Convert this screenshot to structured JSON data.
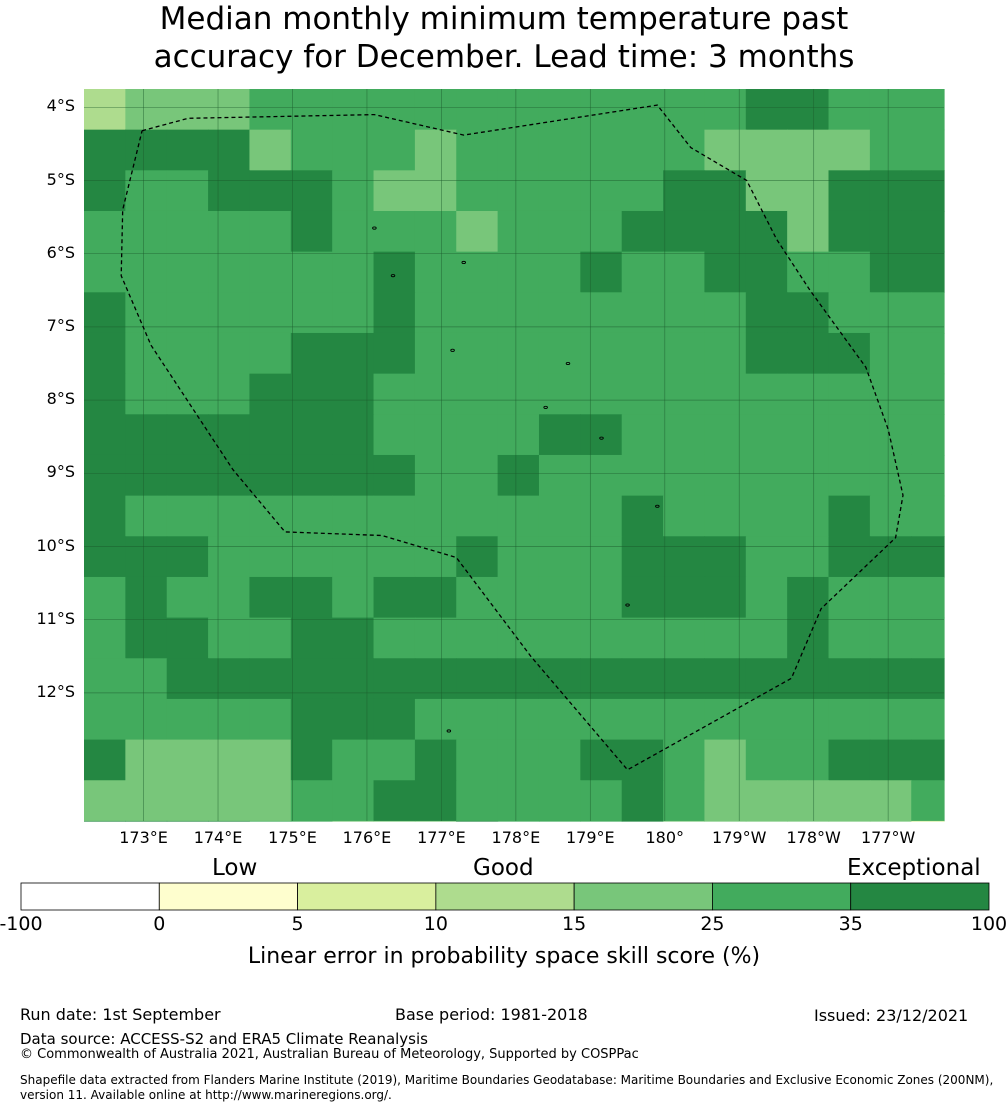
{
  "title": {
    "line1": "Median monthly minimum temperature past",
    "line2": "accuracy for December. Lead time: 3 months"
  },
  "map": {
    "lat_labels": [
      "4°S",
      "5°S",
      "6°S",
      "7°S",
      "8°S",
      "9°S",
      "10°S",
      "11°S",
      "12°S"
    ],
    "lon_labels": [
      "173°E",
      "174°E",
      "175°E",
      "176°E",
      "177°E",
      "178°E",
      "179°E",
      "180°",
      "179°W",
      "178°W",
      "177°W"
    ],
    "lat_range": [
      -13.75,
      -3.75
    ],
    "lon_range": [
      172.2,
      183.75
    ],
    "grid_lat_start": -3.75,
    "grid_lon_start": 172.2,
    "grid_cell_size": 0.5555,
    "grid_rows": [
      "aeeeffffffffffffddffffff",
      "ddddefffeffffffecccffff",
      "dffdddfeefffffddccdddff",
      "fffffdfffcfffddddcddddd",
      "fffffffdffffdffddffdddd",
      "dffffffdffffffffddfffff",
      "dffffdddffffffffdddffff",
      "dfffdddffffffffffffffff",
      "dddddddffffddffffffffff",
      "ddddddddffdffffffffffff",
      "dffffffffffffdffffdfffd",
      "dddffffffdfffdddffdddfd",
      "fdffddfddffffdddfdffffd",
      "fddffddffffffffffdffffd",
      "ffddddddddddddddddddddf",
      "fffffdddffffffffffffffd",
      "dccccdffdfffddfcffdddff",
      "cccccffddffffdfcccccfff",
      "ddddffcccdfffdccccccbeb"
    ],
    "eez_outline": [
      [
        172.98,
        -4.32
      ],
      [
        173.6,
        -4.15
      ],
      [
        176.1,
        -4.1
      ],
      [
        177.3,
        -4.38
      ],
      [
        179.9,
        -3.97
      ],
      [
        180.35,
        -4.55
      ],
      [
        181.1,
        -5.0
      ],
      [
        181.5,
        -5.8
      ],
      [
        181.95,
        -6.5
      ],
      [
        182.7,
        -7.55
      ],
      [
        183.0,
        -8.4
      ],
      [
        183.2,
        -9.3
      ],
      [
        183.1,
        -9.88
      ],
      [
        182.1,
        -10.85
      ],
      [
        181.7,
        -11.8
      ],
      [
        179.5,
        -13.05
      ],
      [
        178.2,
        -11.5
      ],
      [
        177.2,
        -10.15
      ],
      [
        176.2,
        -9.85
      ],
      [
        174.9,
        -9.8
      ],
      [
        174.2,
        -8.95
      ],
      [
        173.1,
        -7.25
      ],
      [
        172.7,
        -6.3
      ],
      [
        172.72,
        -5.4
      ],
      [
        172.98,
        -4.32
      ]
    ],
    "islands": [
      [
        176.1,
        -5.65
      ],
      [
        176.35,
        -6.3
      ],
      [
        177.3,
        -6.12
      ],
      [
        177.15,
        -7.32
      ],
      [
        178.7,
        -7.5
      ],
      [
        178.4,
        -8.1
      ],
      [
        179.15,
        -8.52
      ],
      [
        179.9,
        -9.45
      ],
      [
        179.5,
        -10.8
      ],
      [
        177.1,
        -12.52
      ]
    ]
  },
  "legend": {
    "categories": [
      "Low",
      "Good",
      "Exceptional"
    ],
    "ticks": [
      "-100",
      "0",
      "5",
      "10",
      "15",
      "25",
      "35",
      "100"
    ],
    "colors": [
      "#ffffff",
      "#fefece",
      "#d9ef9e",
      "#aedc8e",
      "#78c67a",
      "#42ab5d",
      "#248742"
    ],
    "label": "Linear error in probability space skill score (%)"
  },
  "footer": {
    "run_date": "Run date: 1st September",
    "base_period": "Base period: 1981-2018",
    "issued": "Issued: 23/12/2021",
    "data_source": "Data source: ACCESS-S2 and ERA5 Climate Reanalysis",
    "copyright": "© Commonwealth of Australia 2021, Australian Bureau of Meteorology, Supported by COSPPac",
    "shapefile_line1": "Shapefile data extracted from Flanders Marine Institute (2019), Maritime Boundaries Geodatabase: Maritime Boundaries and Exclusive Economic Zones (200NM),",
    "shapefile_line2": "version 11. Available online at http://www.marineregions.org/."
  }
}
